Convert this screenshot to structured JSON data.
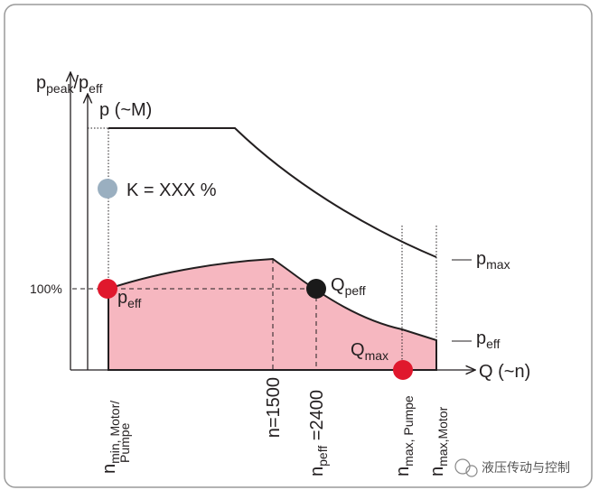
{
  "diagram": {
    "y_axis_outer": {
      "base": "p",
      "sub": "peak",
      "base2": "/p",
      "sub2": "eff"
    },
    "y_axis_inner": "p (~M)",
    "x_axis": "Q (~n)",
    "reference_label": "100%",
    "k_label": "K = XXX %",
    "curve_pmax": {
      "base": "p",
      "sub": "max"
    },
    "curve_peff": {
      "base": "p",
      "sub": "eff"
    },
    "point_peff": {
      "base": "p",
      "sub": "eff"
    },
    "point_qpeff": {
      "base": "Q",
      "sub": "peff"
    },
    "point_qmax": {
      "base": "Q",
      "sub": "max"
    },
    "x_marks": {
      "n_min": {
        "base": "n",
        "sub": "min, Motor/",
        "sub_line2": "Pumpe"
      },
      "n_1500": "n=1500",
      "n_peff": {
        "base": "n",
        "sub": "peff",
        "tail": " =2400"
      },
      "n_max_pump": {
        "base": "n",
        "sub": "max, Pumpe"
      },
      "n_max_motor": {
        "base": "n",
        "sub": "max,Motor"
      }
    },
    "watermark": "液压传动与控制"
  }
}
